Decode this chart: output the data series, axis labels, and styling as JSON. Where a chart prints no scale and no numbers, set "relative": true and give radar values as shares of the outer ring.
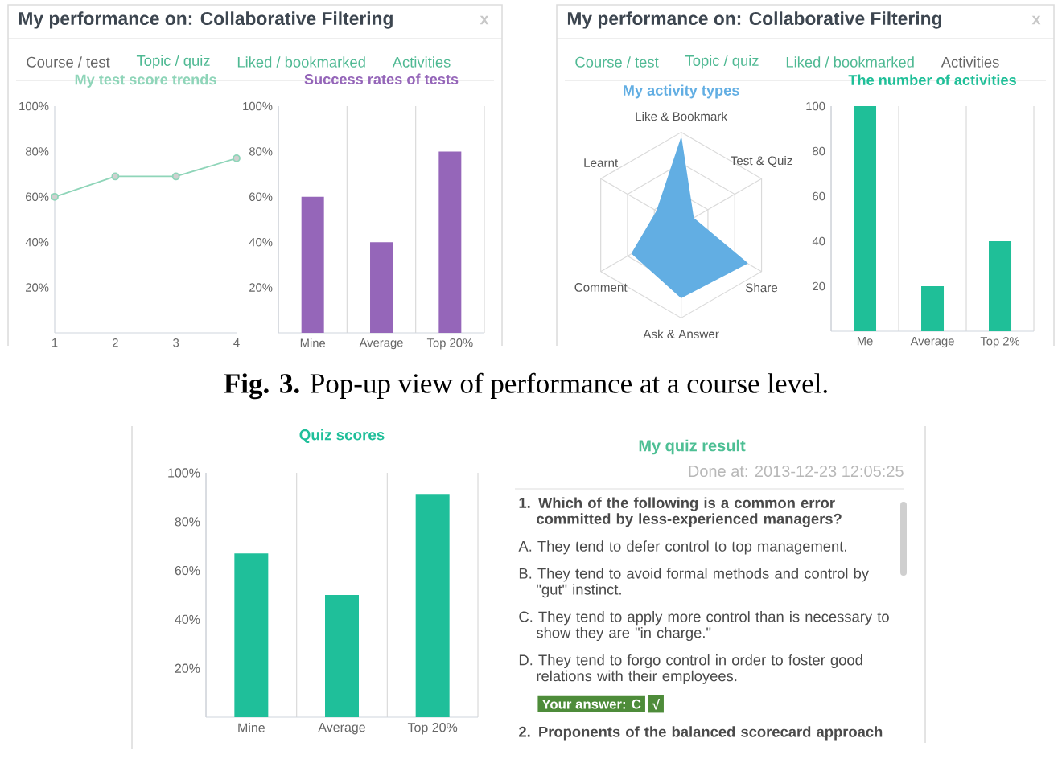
{
  "chart_data": [
    {
      "type": "other",
      "title": "My performance on: Collaborative Filtering",
      "categories": [
        "Course / test",
        "Topic / quiz",
        "Liked / bookmarked",
        "Activities"
      ],
      "colors": [
        "#666666",
        "#4fb993",
        "#4fb993",
        "#4fb993"
      ],
      "annotations": [
        "x"
      ]
    },
    {
      "type": "line",
      "title": "My test score trends",
      "x": [
        1,
        2,
        3,
        4
      ],
      "xlim": [
        1,
        4
      ],
      "xticks": [
        1,
        2,
        3,
        4
      ],
      "ylim": [
        0,
        100
      ],
      "yticks": [
        {
          "value": 20,
          "label": "20%"
        },
        {
          "value": 40,
          "label": "40%"
        },
        {
          "value": 60,
          "label": "60%"
        },
        {
          "value": 80,
          "label": "80%"
        },
        {
          "value": 100,
          "label": "100%"
        }
      ],
      "marker": "circle",
      "series": [
        {
          "color": "#8fd5b9",
          "values": [
            60,
            69,
            69,
            77
          ]
        }
      ]
    },
    {
      "type": "bar",
      "title": "Success rates of tests",
      "categories": [
        "Mine",
        "Average",
        "Top 20%"
      ],
      "ylim": [
        0,
        100
      ],
      "yticks": [
        {
          "value": 20,
          "label": "20%"
        },
        {
          "value": 40,
          "label": "40%"
        },
        {
          "value": 60,
          "label": "60%"
        },
        {
          "value": 80,
          "label": "80%"
        },
        {
          "value": 100,
          "label": "100%"
        }
      ],
      "grid": "x",
      "series": [
        {
          "color": "#9566b9",
          "values": [
            60,
            40,
            80
          ]
        }
      ]
    },
    {
      "type": "other",
      "title": "My performance on: Collaborative Filtering",
      "categories": [
        "Course / test",
        "Topic / quiz",
        "Liked / bookmarked",
        "Activities"
      ],
      "colors": [
        "#4fb993",
        "#4fb993",
        "#4fb993",
        "#666666"
      ],
      "annotations": [
        "x"
      ]
    },
    {
      "type": "radar",
      "title": "My activity types",
      "categories": [
        "Like & Bookmark",
        "Test & Quiz",
        "Share",
        "Ask & Answer",
        "Comment",
        "Learnt"
      ],
      "relative": true,
      "grid": true,
      "series": [
        {
          "color": "#62aee3",
          "values": [
            0.93,
            0.15,
            0.82,
            0.78,
            0.61,
            0.3
          ]
        }
      ]
    },
    {
      "type": "bar",
      "title": "The number of activities",
      "categories": [
        "Me",
        "Average",
        "Top 2%"
      ],
      "ylim": [
        0,
        100
      ],
      "yticks": [
        20,
        40,
        60,
        80,
        100
      ],
      "grid": "x",
      "series": [
        {
          "color": "#1fbf98",
          "values": [
            100,
            20,
            40
          ]
        }
      ]
    },
    {
      "type": "other",
      "annotations": [
        "**Fig. 3.** Pop-up view of performance at a course level."
      ]
    },
    {
      "type": "bar",
      "title": "Quiz scores",
      "categories": [
        "Mine",
        "Average",
        "Top 20%"
      ],
      "ylim": [
        0,
        100
      ],
      "yticks": [
        {
          "value": 20,
          "label": "20%"
        },
        {
          "value": 40,
          "label": "40%"
        },
        {
          "value": 60,
          "label": "60%"
        },
        {
          "value": 80,
          "label": "80%"
        },
        {
          "value": 100,
          "label": "100%"
        }
      ],
      "grid": "x",
      "series": [
        {
          "color": "#1fbf9a",
          "values": [
            67,
            50,
            91
          ]
        }
      ]
    },
    {
      "type": "other",
      "title": "My quiz result",
      "subtitle": "Done at: 2013-12-23 12:05:25",
      "color": "#4dbf94",
      "annotations": [
        "**1. Which of the following is a common error committed by less-experienced managers?**",
        "A. They tend to defer control to top management.",
        "B. They tend to avoid formal methods and control by \"gut\" instinct.",
        "C. They tend to apply more control than is necessary to show they are \"in charge.\"",
        "D. They tend to forgo control in order to foster good relations with their employees.",
        "Your answer: C",
        "√",
        "**2. Proponents of the balanced scorecard approach**"
      ]
    }
  ]
}
